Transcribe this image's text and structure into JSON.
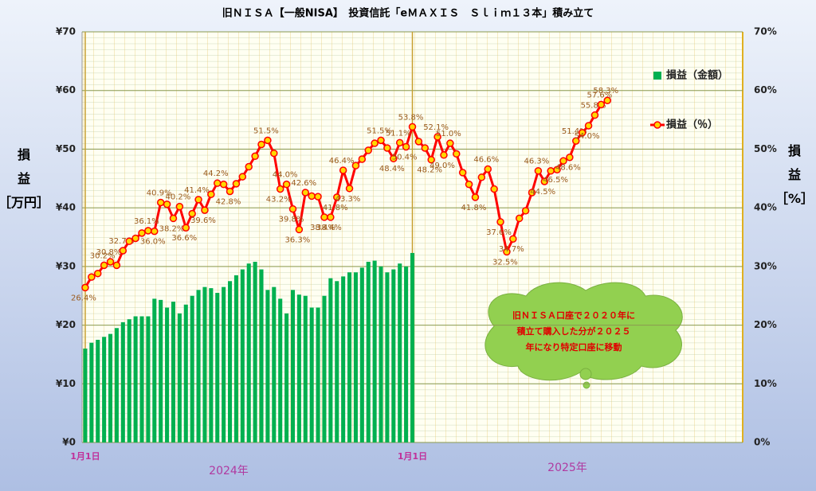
{
  "chart_data": {
    "type": "combo",
    "title": "旧ＮＩＳＡ【一般NISA】　投資信託「eＭＡＸＩＳ　Ｓｌｉｍ１３本」積み立て",
    "ylabel": "損益［万円］",
    "y2label": "損益［%］",
    "categories": [
      "1月1日",
      null,
      null,
      null,
      null,
      null,
      null,
      null,
      null,
      null,
      null,
      null,
      null,
      null,
      null,
      null,
      null,
      null,
      null,
      null,
      null,
      null,
      null,
      null,
      null,
      null,
      null,
      null,
      null,
      null,
      null,
      null,
      null,
      null,
      null,
      null,
      null,
      null,
      null,
      null,
      null,
      null,
      null,
      null,
      null,
      null,
      null,
      null,
      null,
      null,
      null,
      null,
      "1月1日",
      null,
      null,
      null,
      null,
      null,
      null,
      null,
      null,
      null,
      null,
      null,
      null,
      null,
      null,
      null,
      null,
      null,
      null,
      null,
      null,
      null,
      null,
      null,
      null,
      null,
      null,
      null,
      null,
      null,
      null,
      null,
      null,
      null,
      null,
      null,
      null,
      null,
      null,
      null,
      null,
      null,
      null,
      null,
      null,
      null,
      null,
      null,
      null,
      null,
      null,
      null,
      null
    ],
    "series": [
      {
        "name": "損益（金額）",
        "type": "bar",
        "color": "#00b050",
        "values": [
          16,
          17,
          17.5,
          18,
          18.5,
          19.5,
          20.5,
          21,
          21.5,
          21.5,
          21.5,
          24.5,
          24.3,
          23,
          24,
          22,
          23.5,
          25,
          26,
          26.5,
          26.3,
          25.5,
          26.5,
          27.5,
          28.5,
          29.5,
          30.5,
          30.8,
          29.5,
          26,
          26.5,
          24.5,
          22,
          26,
          25.2,
          25,
          23,
          23,
          25,
          28,
          27.5,
          28.3,
          29,
          29,
          29.8,
          30.8,
          31,
          30,
          29,
          29.5,
          30.5,
          30,
          32.3,
          null,
          null,
          null,
          null,
          null,
          null,
          null,
          null,
          null,
          null,
          null,
          null,
          null,
          null,
          null,
          null,
          null,
          null,
          null,
          null,
          null,
          null,
          null,
          null,
          null,
          null,
          null,
          null,
          null,
          null,
          null,
          null,
          null,
          null,
          null,
          null,
          null,
          null,
          null,
          null,
          null,
          null,
          null,
          null,
          null,
          null,
          null,
          null,
          null,
          null,
          null,
          null
        ]
      },
      {
        "name": "損益（％）",
        "type": "line",
        "axis": "y2",
        "color": "#ff0000",
        "marker_color": "#ffd700",
        "values": [
          26.4,
          28.2,
          28.8,
          30.2,
          30.8,
          30.2,
          32.7,
          34.3,
          34.8,
          35.7,
          36.1,
          36.0,
          40.9,
          40.6,
          38.2,
          40.2,
          36.6,
          39.0,
          41.4,
          39.6,
          42.3,
          44.2,
          44.0,
          42.8,
          44.1,
          45.3,
          47.0,
          48.8,
          50.8,
          51.5,
          49.3,
          43.2,
          44.0,
          39.8,
          36.3,
          42.6,
          42.0,
          41.9,
          38.4,
          38.4,
          41.8,
          46.4,
          43.3,
          47.2,
          48.3,
          49.8,
          51.0,
          51.5,
          50.2,
          48.4,
          51.1,
          50.4,
          53.8,
          51.3,
          50.2,
          48.2,
          52.1,
          49.0,
          51.0,
          49.2,
          46.0,
          44.0,
          41.8,
          45.2,
          46.6,
          43.2,
          37.6,
          32.5,
          34.7,
          38.2,
          39.5,
          42.6,
          46.3,
          44.5,
          46.3,
          46.5,
          48.0,
          48.6,
          51.4,
          52.8,
          54.0,
          55.8,
          57.6,
          58.3,
          null,
          null,
          null,
          null,
          null,
          null,
          null,
          null,
          null,
          null,
          null,
          null,
          null,
          null,
          null,
          null,
          null,
          null,
          null,
          null,
          null
        ],
        "value_labels": [
          "26.4%",
          null,
          null,
          "30.2%",
          "30.8%",
          null,
          "32.7%",
          null,
          null,
          null,
          "36.1%",
          "36.0%",
          "40.9%",
          null,
          "38.2%",
          "40.2%",
          "36.6%",
          null,
          "41.4%",
          "39.6%",
          null,
          "44.2%",
          null,
          "42.8%",
          null,
          null,
          null,
          null,
          null,
          "51.5%",
          null,
          "43.2%",
          "44.0%",
          "39.8%",
          "36.3%",
          "42.6%",
          null,
          null,
          "38.4%",
          "38.4%",
          "41.8%",
          "46.4%",
          "43.3%",
          null,
          null,
          null,
          null,
          "51.5%",
          null,
          "48.4%",
          "51.1%",
          "50.4%",
          "53.8%",
          null,
          null,
          "48.2%",
          "52.1%",
          "49.0%",
          "51.0%",
          null,
          null,
          null,
          "41.8%",
          null,
          "46.6%",
          null,
          "37.6%",
          "32.5%",
          "34.7%",
          null,
          null,
          null,
          "46.3%",
          "44.5%",
          null,
          "46.5%",
          null,
          "48.6%",
          "51.4%",
          null,
          "54.0%",
          "55.8%",
          "57.6%",
          "58.3%",
          null,
          null,
          null,
          null,
          null,
          null,
          null,
          null,
          null,
          null,
          null,
          null,
          null,
          null,
          null,
          null,
          null,
          null,
          null,
          null,
          null
        ]
      }
    ],
    "ylim": [
      0,
      70
    ],
    "yticks": [
      {
        "value": 0,
        "label": "¥0"
      },
      {
        "value": 10,
        "label": "¥10"
      },
      {
        "value": 20,
        "label": "¥20"
      },
      {
        "value": 30,
        "label": "¥30"
      },
      {
        "value": 40,
        "label": "¥40"
      },
      {
        "value": 50,
        "label": "¥50"
      },
      {
        "value": 60,
        "label": "¥60"
      },
      {
        "value": 70,
        "label": "¥70"
      }
    ],
    "y2lim": [
      0,
      70
    ],
    "y2ticks": [
      {
        "value": 0,
        "label": "0%"
      },
      {
        "value": 10,
        "label": "10%"
      },
      {
        "value": 20,
        "label": "20%"
      },
      {
        "value": 30,
        "label": "30%"
      },
      {
        "value": 40,
        "label": "40%"
      },
      {
        "value": 50,
        "label": "50%"
      },
      {
        "value": 60,
        "label": "60%"
      },
      {
        "value": 70,
        "label": "70%"
      }
    ],
    "grid": true,
    "annotations": [
      "2024年",
      "2025年"
    ],
    "callout": [
      "旧ＮＩＳＡ口座で２０２０年に",
      "積立て購入した分が２０２５",
      "年になり特定口座に移動"
    ]
  }
}
